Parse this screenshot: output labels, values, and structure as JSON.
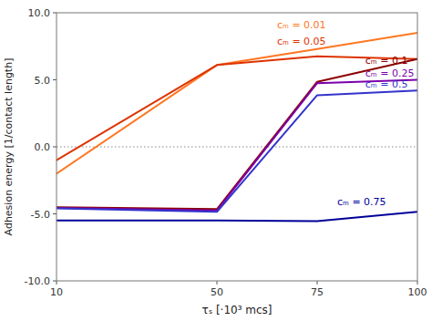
{
  "chart_data": {
    "type": "line",
    "title": "",
    "xlabel": "τₛ [·10³ mcs]",
    "ylabel": "Adhesion energy [1/contact length]",
    "x": [
      10,
      50,
      75,
      100
    ],
    "xlim": [
      10,
      100
    ],
    "ylim": [
      -10.0,
      10.0
    ],
    "xticks": [
      10,
      50,
      75,
      100
    ],
    "yticks": [
      {
        "value": -10.0,
        "label": "-10.0"
      },
      {
        "value": -5.0,
        "label": "-5.0"
      },
      {
        "value": 0.0,
        "label": "0.0"
      },
      {
        "value": 5.0,
        "label": "5.0"
      },
      {
        "value": 10.0,
        "label": "10.0"
      }
    ],
    "hline": 0.0,
    "grid": false,
    "series": [
      {
        "color": "#FF7722",
        "values": [
          -2.0,
          6.1,
          7.3,
          8.5
        ]
      },
      {
        "color": "#DD3300",
        "values": [
          -1.0,
          6.1,
          6.75,
          6.55
        ]
      },
      {
        "color": "#8B0000",
        "values": [
          -4.5,
          -4.65,
          4.85,
          6.55
        ]
      },
      {
        "color": "#7B00AA",
        "values": [
          -4.55,
          -4.75,
          4.75,
          5.0
        ]
      },
      {
        "color": "#3333CC",
        "values": [
          -4.6,
          -4.85,
          3.85,
          4.2
        ]
      },
      {
        "color": "#000099",
        "values": [
          -5.5,
          -5.5,
          -5.55,
          -4.85
        ]
      }
    ],
    "annotations": [
      {
        "text": "cₘ = 0.01",
        "x": 65,
        "y": 9.1,
        "color": "#FF7722"
      },
      {
        "text": "cₘ = 0.05",
        "x": 65,
        "y": 7.85,
        "color": "#DD3300"
      },
      {
        "text": "cₘ = 0.1",
        "x": 87,
        "y": 6.45,
        "color": "#8B0000"
      },
      {
        "text": "cₘ = 0.25",
        "x": 87,
        "y": 5.5,
        "color": "#7B00AA"
      },
      {
        "text": "cₘ = 0.5",
        "x": 87,
        "y": 4.65,
        "color": "#3333CC"
      },
      {
        "text": "cₘ = 0.75",
        "x": 80,
        "y": -4.1,
        "color": "#000099"
      }
    ]
  }
}
